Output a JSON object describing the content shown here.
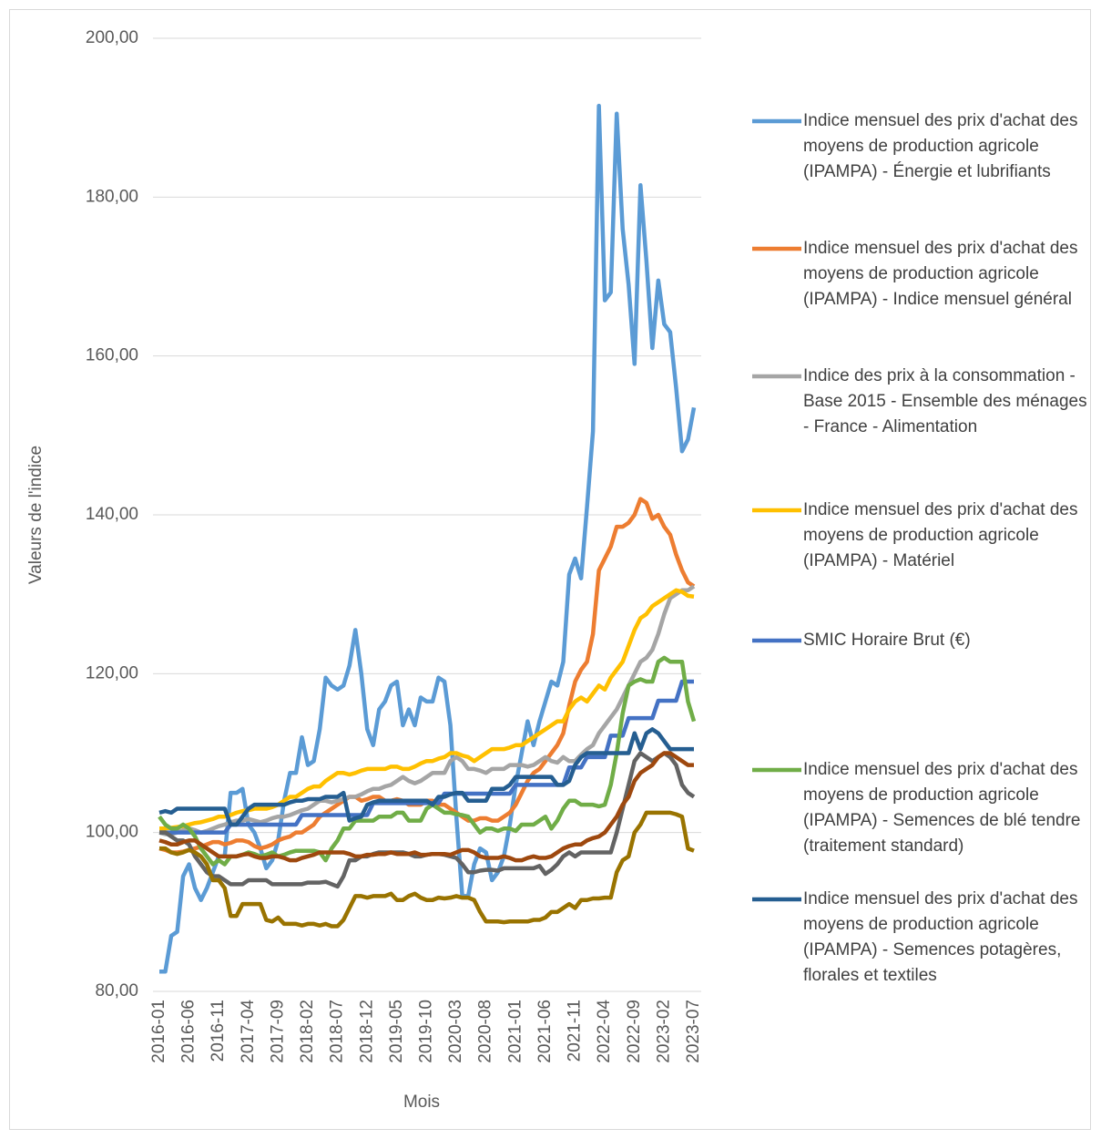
{
  "chart_data": {
    "type": "line",
    "x_label": "Mois",
    "y_label": "Valeurs de l'indice",
    "categories": [
      "2016-01",
      null,
      null,
      null,
      null,
      "2016-06",
      null,
      null,
      null,
      null,
      "2016-11",
      null,
      null,
      null,
      null,
      "2017-04",
      null,
      null,
      null,
      null,
      "2017-09",
      null,
      null,
      null,
      null,
      "2018-02",
      null,
      null,
      null,
      null,
      "2018-07",
      null,
      null,
      null,
      null,
      "2018-12",
      null,
      null,
      null,
      null,
      "2019-05",
      null,
      null,
      null,
      null,
      "2019-10",
      null,
      null,
      null,
      null,
      "2020-03",
      null,
      null,
      null,
      null,
      "2020-08",
      null,
      null,
      null,
      null,
      "2021-01",
      null,
      null,
      null,
      null,
      "2021-06",
      null,
      null,
      null,
      null,
      "2021-11",
      null,
      null,
      null,
      null,
      "2022-04",
      null,
      null,
      null,
      null,
      "2022-09",
      null,
      null,
      null,
      null,
      "2023-02",
      null,
      null,
      null,
      null,
      "2023-07"
    ],
    "ylim": [
      80,
      200
    ],
    "yticks": [
      {
        "value": 80,
        "label": "80,00"
      },
      {
        "value": 100,
        "label": "100,00"
      },
      {
        "value": 120,
        "label": "120,00"
      },
      {
        "value": 140,
        "label": "140,00"
      },
      {
        "value": 160,
        "label": "160,00"
      },
      {
        "value": 180,
        "label": "180,00"
      },
      {
        "value": 200,
        "label": "200,00"
      }
    ],
    "grid": true,
    "legend": "right",
    "series": [
      {
        "name": "Indice mensuel des prix d'achat des moyens de production agricole (IPAMPA) - Énergie et lubrifiants",
        "color": "#5b9bd5",
        "values": [
          82.5,
          82.5,
          87,
          87.5,
          94.5,
          96,
          93,
          91.5,
          93,
          95,
          97,
          97,
          105,
          105,
          105.5,
          101,
          100,
          98,
          95.5,
          96.5,
          99,
          104,
          107.5,
          107.5,
          112,
          108.5,
          109,
          113,
          119.5,
          118.5,
          118,
          118.5,
          121,
          125.5,
          120,
          113,
          111,
          115.5,
          116.5,
          118.5,
          119,
          113.5,
          115.5,
          113.5,
          117,
          116.5,
          116.5,
          119.5,
          119,
          113.5,
          102,
          92,
          92,
          96,
          98,
          97.5,
          94,
          95,
          97,
          101,
          106,
          110,
          114,
          111,
          114,
          116.5,
          119,
          118.5,
          121.5,
          132.5,
          134.5,
          132,
          141,
          150.5,
          191.5,
          167,
          168,
          190.5,
          176,
          169,
          159,
          181.5,
          172,
          161,
          169.5,
          164,
          163,
          156,
          148,
          149.5,
          153.5
        ]
      },
      {
        "name": "Indice mensuel des prix d'achat des moyens de production agricole (IPAMPA) - Indice mensuel général",
        "color": "#ed7d31",
        "values": [
          98,
          97.8,
          97.5,
          97.5,
          97.6,
          97.8,
          98,
          98.2,
          98.5,
          98.8,
          98.8,
          98.5,
          98.7,
          99,
          99,
          98.8,
          98.3,
          98,
          98.2,
          98.5,
          99,
          99.3,
          99.5,
          100,
          100,
          100.5,
          101,
          102,
          102.5,
          103,
          103.5,
          104,
          104.5,
          104.5,
          104,
          104.2,
          104.5,
          104.5,
          104,
          104,
          104.2,
          104,
          103.5,
          103.5,
          103.5,
          104,
          104,
          103.5,
          103.5,
          103,
          102.5,
          102,
          101.5,
          101.5,
          101.8,
          101.8,
          101.5,
          101.5,
          102,
          102.5,
          103.5,
          105,
          106.5,
          107.5,
          108,
          109,
          110,
          111,
          112.5,
          116,
          119,
          120.5,
          121.5,
          125,
          133,
          134.5,
          136,
          138.5,
          138.5,
          139,
          140,
          142,
          141.5,
          139.5,
          140,
          138.5,
          137.5,
          135,
          133,
          131.5,
          131
        ]
      },
      {
        "name": "Indice des prix à la consommation - Base 2015 - Ensemble des ménages - France - Alimentation",
        "color": "#a5a5a5",
        "values": [
          100,
          99.8,
          99.8,
          100,
          100.3,
          100.5,
          100.3,
          100,
          100.2,
          100.5,
          100.8,
          101,
          101.3,
          101.5,
          101.5,
          101.7,
          101.5,
          101.3,
          101.5,
          101.8,
          102,
          102,
          102.2,
          102.5,
          102.8,
          103,
          103.5,
          104,
          104,
          103.8,
          104,
          104.2,
          104.5,
          104.5,
          104.8,
          105.2,
          105.5,
          105.5,
          105.8,
          106,
          106.5,
          107,
          106.5,
          106.2,
          106.5,
          107,
          107.5,
          107.5,
          107.5,
          109,
          109.5,
          109,
          108,
          108,
          107.8,
          107.5,
          108,
          108,
          108,
          108.5,
          108.5,
          108.5,
          108.3,
          108.5,
          109,
          109.5,
          109,
          108.8,
          109.5,
          109,
          109,
          109.8,
          110.5,
          111,
          112.5,
          113.5,
          114.5,
          115.5,
          117,
          118.5,
          120,
          121.5,
          122,
          123,
          125,
          127.5,
          129.5,
          130,
          130.5,
          130.5,
          131
        ]
      },
      {
        "name": "Indice mensuel des prix d'achat des moyens de production agricole (IPAMPA) - Matériel",
        "color": "#ffc000",
        "values": [
          100.5,
          100.5,
          100.6,
          100.7,
          100.8,
          101,
          101.2,
          101.3,
          101.5,
          101.7,
          102,
          102,
          102.2,
          102.5,
          102.7,
          102.8,
          103,
          103,
          103,
          103.2,
          103.5,
          104,
          104.5,
          104.5,
          105,
          105.5,
          105.8,
          105.8,
          106.5,
          107,
          107.5,
          107.5,
          107.3,
          107.5,
          107.8,
          108,
          108,
          108,
          108,
          108.3,
          108.3,
          108,
          108,
          108.3,
          108.7,
          109,
          109,
          109.3,
          109.5,
          110,
          110,
          109.7,
          109.5,
          109,
          109.5,
          110,
          110.5,
          110.5,
          110.5,
          110.7,
          111,
          111,
          111.5,
          112,
          112.5,
          113,
          113.5,
          114,
          114,
          115.5,
          116.5,
          117,
          116.5,
          117.5,
          118.5,
          118,
          119.5,
          120.5,
          121.5,
          123.5,
          125.5,
          127,
          127.5,
          128.5,
          129,
          129.5,
          130,
          130.5,
          130.3,
          129.8,
          129.7
        ]
      },
      {
        "name": "SMIC Horaire Brut (€)",
        "color": "#4472c4",
        "values": [
          100,
          100,
          100,
          100,
          100,
          100,
          100,
          100,
          100,
          100,
          100,
          100,
          101,
          101,
          101,
          101,
          101,
          101,
          101,
          101,
          101,
          101,
          101,
          101,
          102.2,
          102.2,
          102.2,
          102.2,
          102.2,
          102.2,
          102.2,
          102.2,
          102.2,
          102.2,
          102.2,
          102.2,
          103.7,
          103.7,
          103.7,
          103.7,
          103.7,
          103.7,
          103.7,
          103.7,
          103.7,
          103.7,
          103.7,
          103.7,
          104.9,
          104.9,
          104.9,
          104.9,
          104.9,
          104.9,
          104.9,
          104.9,
          104.9,
          104.9,
          104.9,
          104.9,
          106,
          106,
          106,
          106,
          106,
          106,
          106,
          106,
          106,
          108.2,
          108.2,
          108.2,
          109.5,
          109.5,
          109.5,
          109.5,
          112.2,
          112.2,
          112.2,
          114.4,
          114.4,
          114.4,
          114.4,
          114.4,
          116.6,
          116.6,
          116.6,
          116.6,
          119,
          119,
          119
        ]
      },
      {
        "name": "Indice mensuel des prix d'achat des moyens de production agricole (IPAMPA) - Semences de blé tendre (traitement standard)",
        "color": "#70ad47",
        "values": [
          102,
          101,
          100.5,
          100.5,
          101,
          100.5,
          99.5,
          98,
          97,
          96,
          96.5,
          96,
          97,
          97,
          97.2,
          97.5,
          97.3,
          97,
          97.2,
          97.5,
          97,
          97.2,
          97.5,
          97.7,
          97.7,
          97.7,
          97.7,
          97.5,
          96.5,
          98,
          99,
          100.5,
          100.5,
          101.5,
          101.5,
          101.5,
          101.5,
          102,
          102,
          102,
          102.5,
          102.5,
          101.5,
          101.5,
          101.5,
          103,
          103.5,
          103,
          102.5,
          102.5,
          102.3,
          102.2,
          102,
          101,
          100,
          100.5,
          100.5,
          100.2,
          100.5,
          100.5,
          100.2,
          101,
          101,
          101,
          101.5,
          102,
          100.5,
          101.5,
          103,
          104,
          104,
          103.5,
          103.5,
          103.5,
          103.3,
          103.5,
          106,
          110,
          115,
          118.5,
          119,
          119.3,
          119,
          119,
          121.5,
          122,
          121.5,
          121.5,
          121.5,
          116.5,
          114
        ]
      },
      {
        "name": "Indice mensuel des prix d'achat des moyens de production agricole (IPAMPA) - Semences potagères, florales et textiles",
        "color": "#255e91",
        "values": [
          102.5,
          102.7,
          102.5,
          103,
          103,
          103,
          103,
          103,
          103,
          103,
          103,
          103,
          101,
          101,
          102,
          103,
          103.5,
          103.5,
          103.5,
          103.5,
          103.5,
          103.5,
          103.8,
          104,
          104,
          104.2,
          104.2,
          104.2,
          104.5,
          104.5,
          104.5,
          105,
          101.5,
          101.8,
          102,
          103.5,
          103.8,
          104,
          104,
          104,
          104,
          104,
          104,
          104,
          104,
          104,
          103.5,
          104.5,
          104.5,
          104.8,
          105,
          105,
          104,
          104,
          104,
          104,
          105.5,
          105.5,
          105.5,
          106,
          107,
          107,
          107,
          107,
          107,
          107,
          107,
          106,
          106,
          106.5,
          108.5,
          109.5,
          110,
          110,
          110,
          110,
          110,
          110,
          110,
          110,
          112.5,
          110.5,
          112.5,
          113,
          112.5,
          111.5,
          110.5,
          110.5,
          110.5,
          110.5,
          110.5
        ]
      },
      {
        "color": "#636363",
        "values": [
          100,
          100,
          99.5,
          99,
          99,
          98.5,
          97,
          96,
          95,
          94.5,
          94.5,
          94,
          93.5,
          93.5,
          93.5,
          94,
          94,
          94,
          94,
          93.5,
          93.5,
          93.5,
          93.5,
          93.5,
          93.5,
          93.7,
          93.7,
          93.7,
          93.8,
          93.5,
          93.2,
          94.5,
          96.5,
          96.5,
          97,
          97,
          97.3,
          97.5,
          97.5,
          97.5,
          97.5,
          97.5,
          97.3,
          97,
          97,
          97.2,
          97.3,
          97.3,
          97.2,
          97,
          96.8,
          96,
          95,
          95,
          95.2,
          95.3,
          95.3,
          95.2,
          95.5,
          95.5,
          95.5,
          95.5,
          95.5,
          95.5,
          95.8,
          94.8,
          95.3,
          96,
          97,
          97.5,
          97,
          97.5,
          97.5,
          97.5,
          97.5,
          97.5,
          97.5,
          100,
          103,
          106,
          109,
          110,
          109.5,
          109,
          109.5,
          110,
          109.5,
          108.5,
          106,
          105,
          104.5
        ]
      },
      {
        "color": "#9e480e",
        "values": [
          99,
          98.8,
          98.5,
          98.5,
          98.8,
          99,
          99,
          98.5,
          98,
          97.5,
          97,
          97,
          97,
          97,
          97.2,
          97.3,
          97,
          96.8,
          96.8,
          97,
          97,
          96.8,
          96.5,
          96.5,
          96.8,
          97,
          97.2,
          97.5,
          97.5,
          97.5,
          97.5,
          97.5,
          97.3,
          97,
          97,
          97.2,
          97.2,
          97.3,
          97.3,
          97.5,
          97.3,
          97.3,
          97.3,
          97.5,
          97.2,
          97.2,
          97.3,
          97.3,
          97.3,
          97.2,
          97.5,
          97.8,
          97.8,
          97.5,
          97,
          96.8,
          96.8,
          96.8,
          97,
          96.8,
          96.5,
          96.5,
          96.8,
          97,
          96.8,
          96.8,
          97,
          97.5,
          98,
          98.3,
          98.5,
          98.5,
          99,
          99.3,
          99.5,
          100,
          101,
          102,
          103.5,
          104.5,
          106.5,
          107.5,
          108,
          108.5,
          109.5,
          110,
          110,
          109.5,
          109,
          108.5,
          108.5
        ]
      },
      {
        "color": "#997300",
        "values": [
          98,
          98,
          97.5,
          97.3,
          97.5,
          97.8,
          97.5,
          97,
          96,
          94,
          94,
          93,
          89.5,
          89.5,
          91,
          91,
          91,
          91,
          89,
          88.8,
          89.3,
          88.5,
          88.5,
          88.5,
          88.3,
          88.5,
          88.5,
          88.3,
          88.5,
          88.2,
          88.2,
          89,
          90.5,
          92,
          92,
          91.8,
          92,
          92,
          92,
          92.3,
          91.5,
          91.5,
          92,
          92.3,
          91.8,
          91.5,
          91.5,
          91.8,
          91.7,
          91.8,
          92,
          91.8,
          91.8,
          91.5,
          90,
          88.8,
          88.8,
          88.8,
          88.7,
          88.8,
          88.8,
          88.8,
          88.8,
          89,
          89,
          89.3,
          90,
          90,
          90.5,
          91,
          90.5,
          91.5,
          91.5,
          91.7,
          91.7,
          91.8,
          91.8,
          95,
          96.5,
          97,
          100,
          101,
          102.5,
          102.5,
          102.5,
          102.5,
          102.5,
          102.3,
          102,
          98,
          97.7
        ]
      }
    ]
  }
}
